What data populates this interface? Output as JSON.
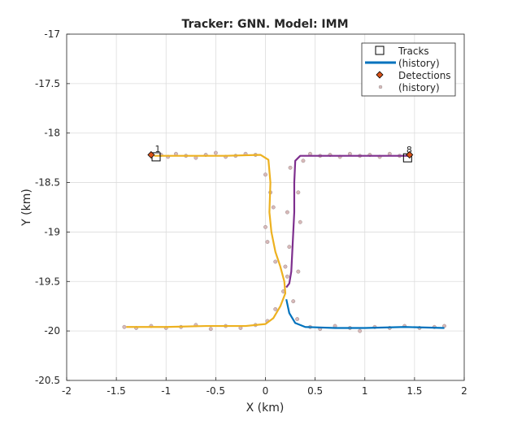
{
  "chart_data": {
    "type": "line",
    "title": "Tracker: GNN. Model: IMM",
    "xlabel": "X (km)",
    "ylabel": "Y (km)",
    "xlim": [
      -2,
      2
    ],
    "ylim": [
      -20.5,
      -17
    ],
    "xticks": [
      "-2",
      "-1.5",
      "-1",
      "-0.5",
      "0",
      "0.5",
      "1",
      "1.5",
      "2"
    ],
    "xtick_values": [
      -2,
      -1.5,
      -1,
      -0.5,
      0,
      0.5,
      1,
      1.5,
      2
    ],
    "yticks": [
      "-17",
      "-17.5",
      "-18",
      "-18.5",
      "-19",
      "-19.5",
      "-20",
      "-20.5"
    ],
    "ytick_values": [
      -17,
      -17.5,
      -18,
      -18.5,
      -19,
      -19.5,
      -20,
      -20.5
    ],
    "grid": true,
    "legend": {
      "placement": "top-right",
      "entries": [
        "Tracks",
        "(history)",
        "Detections",
        "(history)"
      ]
    },
    "colors": {
      "track1": "#EDB120",
      "track8": "#7E2F8E",
      "track_blue": "#0072BD",
      "detection": "#D95319",
      "detection_history": "#D8B9B9"
    },
    "tracks": [
      {
        "id": "1",
        "color": "#EDB120",
        "current": [
          -1.1,
          -18.24
        ],
        "history": [
          [
            -1.12,
            -18.23
          ],
          [
            -0.8,
            -18.23
          ],
          [
            -0.4,
            -18.23
          ],
          [
            -0.05,
            -18.22
          ],
          [
            0.03,
            -18.27
          ],
          [
            0.05,
            -18.5
          ],
          [
            0.04,
            -18.8
          ],
          [
            0.06,
            -19.0
          ],
          [
            0.1,
            -19.2
          ],
          [
            0.15,
            -19.35
          ],
          [
            0.19,
            -19.5
          ],
          [
            0.2,
            -19.62
          ],
          [
            0.15,
            -19.75
          ],
          [
            0.08,
            -19.87
          ],
          [
            0.0,
            -19.93
          ],
          [
            -0.2,
            -19.95
          ],
          [
            -0.6,
            -19.95
          ],
          [
            -1.0,
            -19.96
          ],
          [
            -1.4,
            -19.96
          ]
        ]
      },
      {
        "id": "8",
        "color": "#7E2F8E",
        "current": [
          1.43,
          -18.25
        ],
        "history": [
          [
            1.45,
            -18.23
          ],
          [
            1.0,
            -18.23
          ],
          [
            0.6,
            -18.23
          ],
          [
            0.35,
            -18.23
          ],
          [
            0.3,
            -18.28
          ],
          [
            0.29,
            -18.5
          ],
          [
            0.29,
            -18.8
          ],
          [
            0.28,
            -19.0
          ],
          [
            0.27,
            -19.2
          ],
          [
            0.26,
            -19.4
          ],
          [
            0.24,
            -19.52
          ],
          [
            0.21,
            -19.56
          ]
        ]
      },
      {
        "id": "",
        "color": "#0072BD",
        "current": null,
        "history": [
          [
            0.21,
            -19.68
          ],
          [
            0.24,
            -19.82
          ],
          [
            0.3,
            -19.92
          ],
          [
            0.4,
            -19.96
          ],
          [
            0.7,
            -19.97
          ],
          [
            1.0,
            -19.97
          ],
          [
            1.4,
            -19.96
          ],
          [
            1.8,
            -19.97
          ]
        ]
      }
    ],
    "detections_current": [
      [
        -1.15,
        -18.22
      ],
      [
        1.45,
        -18.22
      ]
    ],
    "detections_history": [
      [
        -1.05,
        -18.22
      ],
      [
        -0.98,
        -18.24
      ],
      [
        -0.9,
        -18.21
      ],
      [
        -0.8,
        -18.23
      ],
      [
        -0.7,
        -18.25
      ],
      [
        -0.6,
        -18.22
      ],
      [
        -0.5,
        -18.2
      ],
      [
        -0.4,
        -18.24
      ],
      [
        -0.3,
        -18.23
      ],
      [
        -0.2,
        -18.21
      ],
      [
        -0.1,
        -18.22
      ],
      [
        0.0,
        -18.42
      ],
      [
        0.05,
        -18.6
      ],
      [
        0.08,
        -18.75
      ],
      [
        0.0,
        -18.95
      ],
      [
        0.02,
        -19.1
      ],
      [
        0.1,
        -19.3
      ],
      [
        0.22,
        -19.45
      ],
      [
        0.18,
        -19.6
      ],
      [
        0.1,
        -19.78
      ],
      [
        0.02,
        -19.9
      ],
      [
        -0.1,
        -19.94
      ],
      [
        -0.25,
        -19.97
      ],
      [
        -0.4,
        -19.95
      ],
      [
        -0.55,
        -19.98
      ],
      [
        -0.7,
        -19.94
      ],
      [
        -0.85,
        -19.96
      ],
      [
        -1.0,
        -19.97
      ],
      [
        -1.15,
        -19.95
      ],
      [
        -1.3,
        -19.97
      ],
      [
        -1.42,
        -19.96
      ],
      [
        1.35,
        -18.23
      ],
      [
        1.25,
        -18.21
      ],
      [
        1.15,
        -18.24
      ],
      [
        1.05,
        -18.22
      ],
      [
        0.95,
        -18.23
      ],
      [
        0.85,
        -18.21
      ],
      [
        0.75,
        -18.24
      ],
      [
        0.65,
        -18.22
      ],
      [
        0.55,
        -18.23
      ],
      [
        0.45,
        -18.21
      ],
      [
        0.38,
        -18.28
      ],
      [
        0.25,
        -18.35
      ],
      [
        0.33,
        -18.6
      ],
      [
        0.22,
        -18.8
      ],
      [
        0.35,
        -18.9
      ],
      [
        0.24,
        -19.15
      ],
      [
        0.33,
        -19.4
      ],
      [
        0.2,
        -19.35
      ],
      [
        0.28,
        -19.7
      ],
      [
        0.32,
        -19.88
      ],
      [
        0.45,
        -19.96
      ],
      [
        0.55,
        -19.98
      ],
      [
        0.7,
        -19.95
      ],
      [
        0.85,
        -19.97
      ],
      [
        0.95,
        -20.0
      ],
      [
        1.1,
        -19.96
      ],
      [
        1.25,
        -19.97
      ],
      [
        1.4,
        -19.95
      ],
      [
        1.55,
        -19.97
      ],
      [
        1.7,
        -19.96
      ],
      [
        1.8,
        -19.95
      ]
    ]
  }
}
